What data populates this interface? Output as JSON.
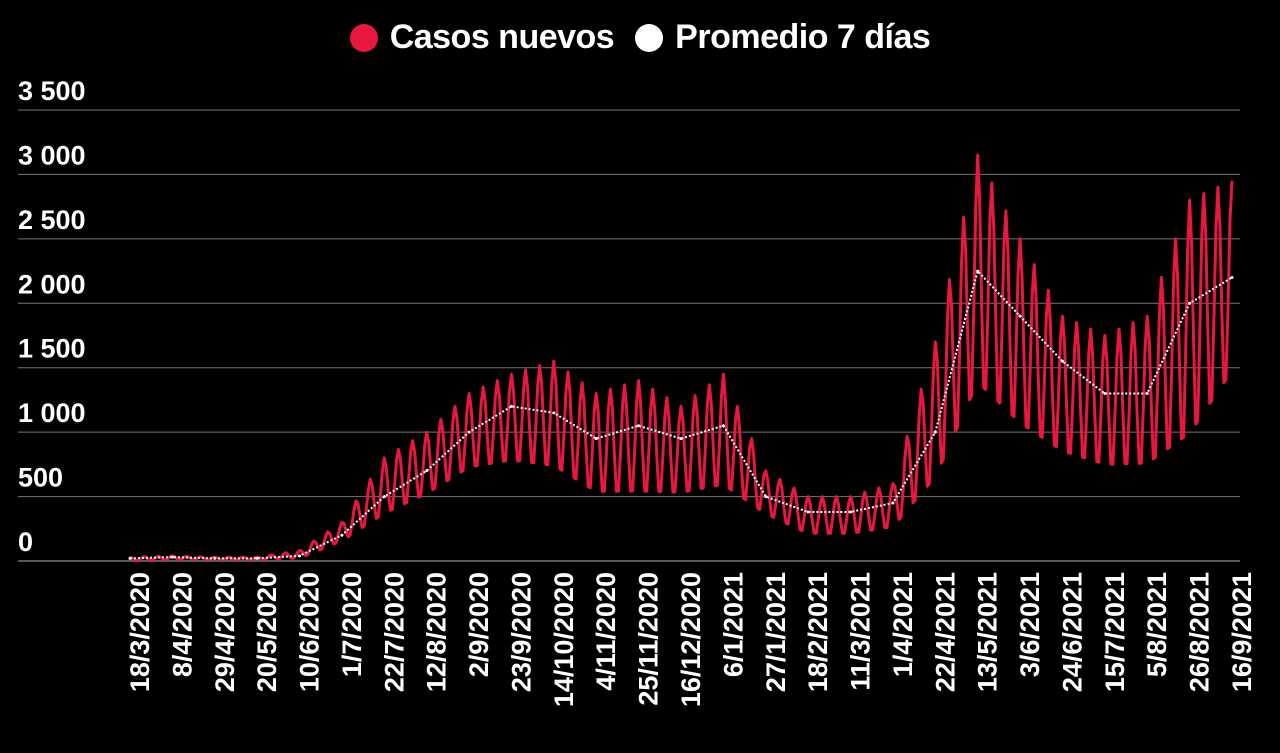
{
  "chart_data": {
    "type": "line",
    "title": "",
    "xlabel": "",
    "ylabel": "",
    "ylim": [
      0,
      3500
    ],
    "y_ticks": [
      {
        "value": 0,
        "label": "0"
      },
      {
        "value": 500,
        "label": "500"
      },
      {
        "value": 1000,
        "label": "1 000"
      },
      {
        "value": 1500,
        "label": "1 500"
      },
      {
        "value": 2000,
        "label": "2 000"
      },
      {
        "value": 2500,
        "label": "2 500"
      },
      {
        "value": 3000,
        "label": "3 000"
      },
      {
        "value": 3500,
        "label": "3 500"
      }
    ],
    "x_tick_labels": [
      "18/3/2020",
      "8/4/2020",
      "29/4/2020",
      "20/5/2020",
      "10/6/2020",
      "1/7/2020",
      "22/7/2020",
      "12/8/2020",
      "2/9/2020",
      "23/9/2020",
      "14/10/2020",
      "4/11/2020",
      "25/11/2020",
      "16/12/2020",
      "6/1/2021",
      "27/1/2021",
      "18/2/2021",
      "11/3/2021",
      "1/4/2021",
      "22/4/2021",
      "13/5/2021",
      "3/6/2021",
      "24/6/2021",
      "15/7/2021",
      "5/8/2021",
      "26/8/2021",
      "16/9/2021"
    ],
    "grid": true,
    "legend_position": "top-center",
    "series": [
      {
        "name": "Casos nuevos",
        "color": "#e8173f",
        "style": "solid",
        "weekly_anchors": {
          "dates": [
            "18/3/2020",
            "8/4/2020",
            "29/4/2020",
            "20/5/2020",
            "10/6/2020",
            "1/7/2020",
            "22/7/2020",
            "12/8/2020",
            "2/9/2020",
            "23/9/2020",
            "14/10/2020",
            "4/11/2020",
            "25/11/2020",
            "16/12/2020",
            "6/1/2021",
            "27/1/2021",
            "18/2/2021",
            "11/3/2021",
            "1/4/2021",
            "22/4/2021",
            "13/5/2021",
            "3/6/2021",
            "24/6/2021",
            "15/7/2021",
            "5/8/2021",
            "26/8/2021",
            "16/9/2021"
          ],
          "weekly_max": [
            30,
            40,
            30,
            30,
            80,
            300,
            800,
            1000,
            1300,
            1450,
            1550,
            1300,
            1400,
            1200,
            1450,
            700,
            500,
            500,
            600,
            1700,
            3150,
            2500,
            1900,
            1750,
            1900,
            2800,
            2950
          ],
          "weekly_min": [
            0,
            10,
            10,
            10,
            20,
            150,
            350,
            500,
            700,
            750,
            700,
            500,
            500,
            500,
            550,
            350,
            200,
            200,
            250,
            600,
            1300,
            1000,
            800,
            700,
            700,
            900,
            1400
          ]
        }
      },
      {
        "name": "Promedio 7 días",
        "color": "#ffffff",
        "style": "dotted",
        "values": [
          20,
          30,
          20,
          20,
          40,
          200,
          500,
          700,
          1000,
          1200,
          1150,
          950,
          1050,
          950,
          1050,
          500,
          380,
          380,
          450,
          1000,
          2250,
          1900,
          1550,
          1300,
          1300,
          2000,
          2200
        ]
      }
    ]
  }
}
